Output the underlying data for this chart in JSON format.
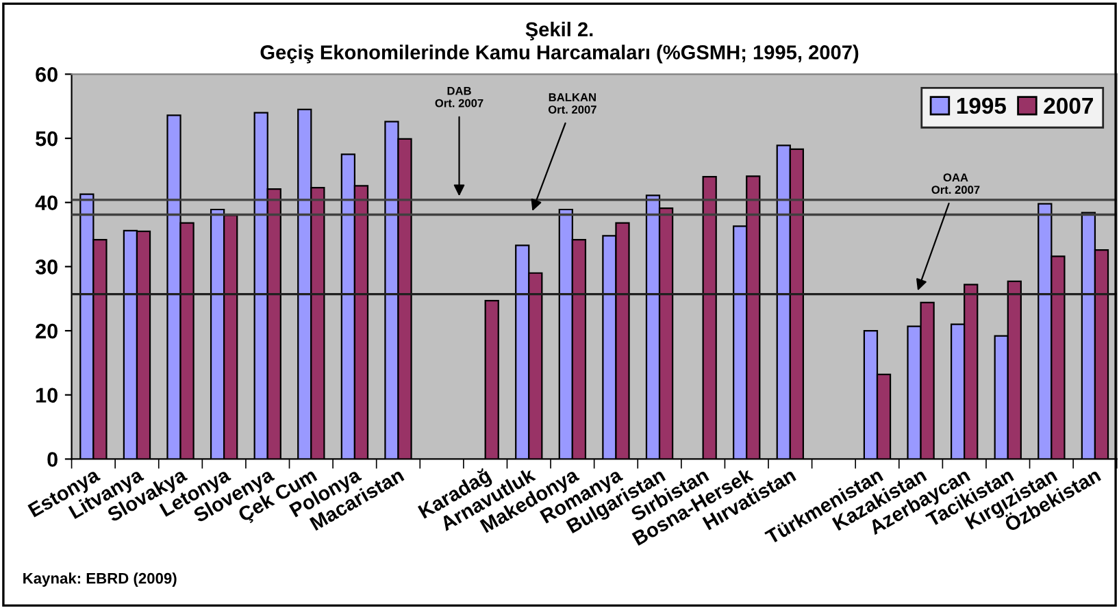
{
  "chart_data": {
    "type": "bar",
    "title": "Şekil 2.\nGeçiş Ekonomilerinde Kamu Harcamaları (%GSMH; 1995, 2007)",
    "categories": [
      "Estonya",
      "Litvanya",
      "Slovakya",
      "Letonya",
      "Slovenya",
      "Çek Cum",
      "Polonya",
      "Macaristan",
      null,
      "Karadağ",
      "Arnavutluk",
      "Makedonya",
      "Romanya",
      "Bulgaristan",
      "Sırbistan",
      "Bosna-Hersek",
      "Hırvatistan",
      null,
      "Türkmenistan",
      "Kazakistan",
      "Azerbaycan",
      "Tacikistan",
      "Kırgızistan",
      "Özbekistan"
    ],
    "series": [
      {
        "name": "1995",
        "color": "#9999ff",
        "values": [
          41.3,
          35.6,
          53.6,
          38.9,
          54.0,
          54.5,
          47.5,
          52.6,
          null,
          null,
          33.3,
          38.9,
          34.8,
          41.1,
          null,
          36.3,
          48.9,
          null,
          20.0,
          20.7,
          21.0,
          19.2,
          39.8,
          38.4
        ]
      },
      {
        "name": "2007",
        "color": "#993366",
        "values": [
          34.2,
          35.5,
          36.8,
          38.0,
          42.1,
          42.3,
          42.6,
          49.9,
          null,
          24.7,
          29.0,
          34.2,
          36.8,
          39.1,
          44.0,
          44.1,
          48.3,
          null,
          13.2,
          24.4,
          27.2,
          27.7,
          31.6,
          32.6
        ]
      }
    ],
    "ylim": [
      0,
      60
    ],
    "yticks": [
      0,
      10,
      20,
      30,
      40,
      50,
      60
    ],
    "grid": false,
    "legend": "top right",
    "ref_lines": [
      {
        "axis": "y",
        "value": 40.4,
        "label": "DAB\nOrt. 2007",
        "color": "#404040"
      },
      {
        "axis": "y",
        "value": 38.1,
        "label": "BALKAN\nOrt. 2007",
        "color": "#404040"
      },
      {
        "axis": "y",
        "value": 25.7,
        "label": "OAA\nOrt. 2007",
        "color": "#202020"
      }
    ],
    "annotations": [
      "Kaynak: EBRD (2009)"
    ]
  }
}
